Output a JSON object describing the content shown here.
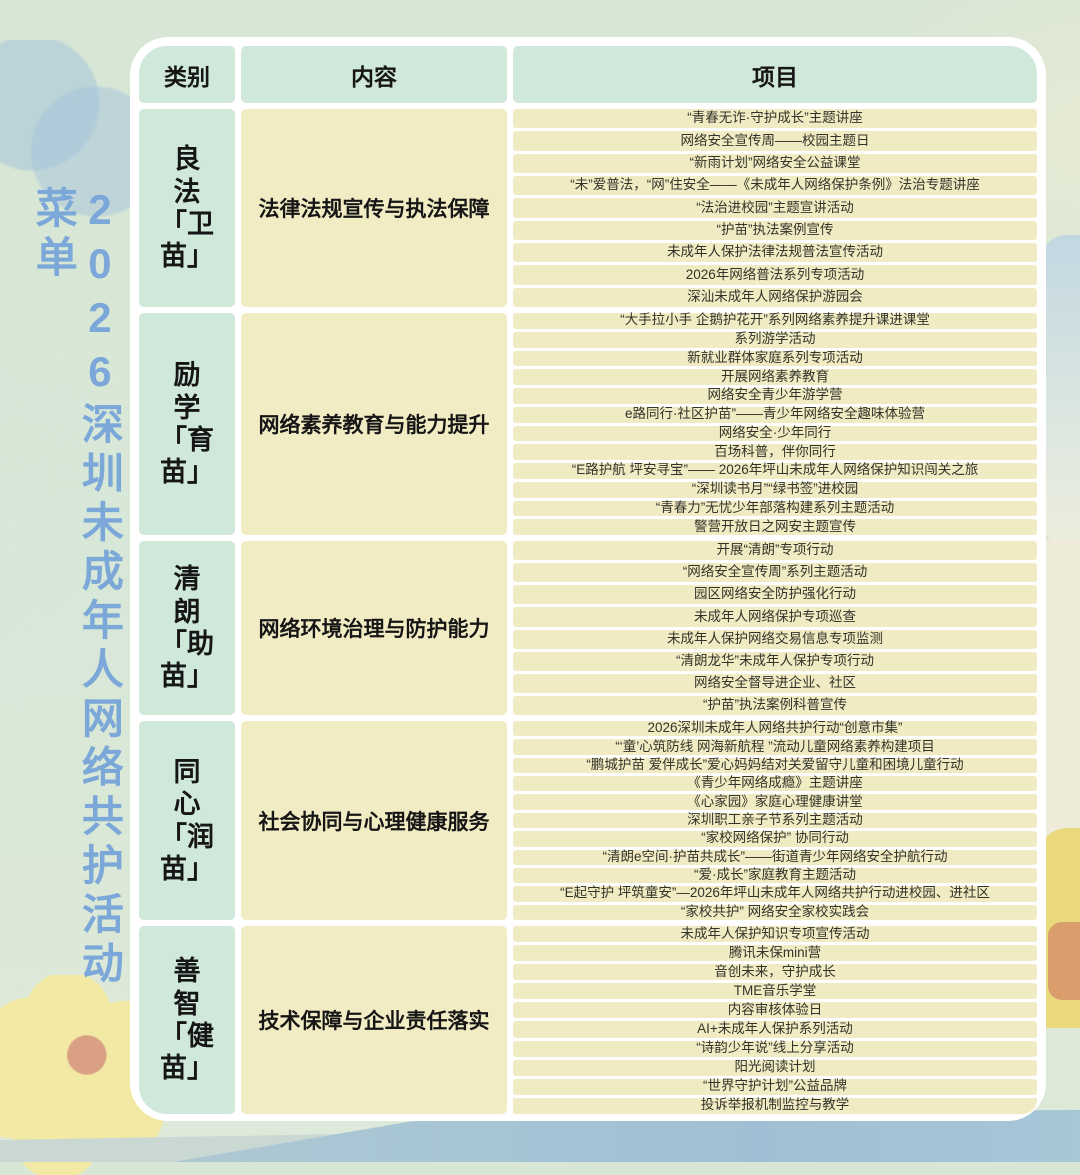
{
  "page": {
    "vertical_title": "2026深圳未成年人网络共护活动菜单"
  },
  "colors": {
    "title_blue": "#7ba8d8",
    "mint_cell": "#cfe8da",
    "cream_cell": "#f2ecc4",
    "panel_white": "#ffffff",
    "text_dark": "#161616",
    "bottom_band_blue": "#9fc0d4",
    "flower_yellow": "#f2e9a5",
    "flower_center_orange": "#d9a083"
  },
  "table": {
    "headers": [
      "类别",
      "内容",
      "项目"
    ],
    "groups": [
      {
        "category": "良法「卫苗」",
        "category_lines": [
          "良",
          "法",
          "「卫",
          "苗」"
        ],
        "content": "法律法规宣传与执法保障",
        "items": [
          "“青春无诈·守护成长”主题讲座",
          "网络安全宣传周——校园主题日",
          "“新雨计划”网络安全公益课堂",
          "“未”爱普法，“网”住安全——《未成年人网络保护条例》法治专题讲座",
          "“法治进校园”主题宣讲活动",
          "“护苗”执法案例宣传",
          "未成年人保护法律法规普法宣传活动",
          "2026年网络普法系列专项活动",
          "深汕未成年人网络保护游园会"
        ]
      },
      {
        "category": "励学「育苗」",
        "category_lines": [
          "励",
          "学",
          "「育",
          "苗」"
        ],
        "content": "网络素养教育与能力提升",
        "items": [
          "“大手拉小手 企鹅护花开”系列网络素养提升课进课堂",
          "系列游学活动",
          "新就业群体家庭系列专项活动",
          "开展网络素养教育",
          "网络安全青少年游学营",
          "e路同行·社区护苗”——青少年网络安全趣味体验营",
          "网络安全·少年同行",
          "百场科普，伴你同行",
          "“E路护航 坪安寻宝”—— 2026年坪山未成年人网络保护知识闯关之旅",
          "“深圳读书月”“绿书签”进校园",
          "“青春力”无忧少年部落构建系列主题活动",
          "警营开放日之网安主题宣传"
        ]
      },
      {
        "category": "清朗「助苗」",
        "category_lines": [
          "清",
          "朗",
          "「助",
          "苗」"
        ],
        "content": "网络环境治理与防护能力",
        "items": [
          "开展“清朗”专项行动",
          "“网络安全宣传周”系列主题活动",
          "园区网络安全防护强化行动",
          "未成年人网络保护专项巡查",
          "未成年人保护网络交易信息专项监测",
          "“清朗龙华”未成年人保护专项行动",
          "网络安全督导进企业、社区",
          "“护苗”执法案例科普宣传"
        ]
      },
      {
        "category": "同心「润苗」",
        "category_lines": [
          "同",
          "心",
          "「润",
          "苗」"
        ],
        "content": "社会协同与心理健康服务",
        "items": [
          "2026深圳未成年人网络共护行动“创意市集”",
          "“‘童’心筑防线 网海新航程 ”流动儿童网络素养构建项目",
          "“鹏城护苗 爱伴成长”爱心妈妈结对关爱留守儿童和困境儿童行动",
          "《青少年网络成瘾》主题讲座",
          "《心家园》家庭心理健康讲堂",
          "深圳职工亲子节系列主题活动",
          "“家校网络保护” 协同行动",
          "“清朗e空间·护苗共成长”——街道青少年网络安全护航行动",
          "“爱·成长”家庭教育主题活动",
          "“E起守护 坪筑童安”—2026年坪山未成年人网络共护行动进校园、进社区",
          "“家校共护” 网络安全家校实践会"
        ]
      },
      {
        "category": "善智「健苗」",
        "category_lines": [
          "善",
          "智",
          "「健",
          "苗」"
        ],
        "content": "技术保障与企业责任落实",
        "items": [
          "未成年人保护知识专项宣传活动",
          "腾讯未保mini营",
          "音创未来，守护成长",
          "TME音乐学堂",
          "内容审核体验日",
          "AI+未成年人保护系列活动",
          "“诗韵少年说”线上分享活动",
          "阳光阅读计划",
          "“世界守护计划”公益品牌",
          "投诉举报机制监控与教学"
        ]
      }
    ]
  }
}
